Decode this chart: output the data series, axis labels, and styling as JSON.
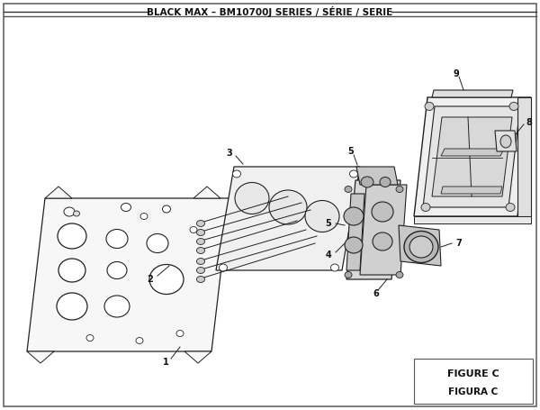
{
  "title": "BLACK MAX – BM10700J SERIES / SÉRIE / SERIE",
  "figure_label": "FIGURE C",
  "figura_label": "FIGURA C",
  "bg_color": "#ffffff",
  "lc": "#222222",
  "tc": "#111111",
  "panel1_color": "#f8f8f8",
  "panel2_color": "#f2f2f2",
  "valve_color": "#e0e0e0",
  "box_color": "#eeeeee"
}
